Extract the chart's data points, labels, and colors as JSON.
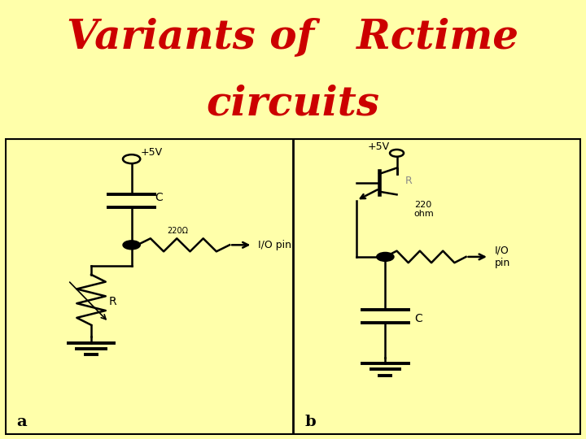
{
  "title_line1": "Variants of   Rctime",
  "title_line2": "circuits",
  "title_color": "#cc0000",
  "title_bg_color": "#ffffaa",
  "title_fontsize": 36,
  "title_fontstyle": "italic",
  "title_fontweight": "bold",
  "panel_bg": "#ffffff",
  "panel_border": "#000000",
  "label_a": "a",
  "label_b": "b",
  "text_220ohm_left": "220Ω",
  "text_IO_left": "I/O pin",
  "text_5V_left": "+5V",
  "text_C_left": "C",
  "text_R_left": "R",
  "text_5V_right": "+5V",
  "text_R_right": "R",
  "text_220ohm_right": "220\nohm",
  "text_IO_right": "I/O\npin",
  "text_C_right": "C"
}
